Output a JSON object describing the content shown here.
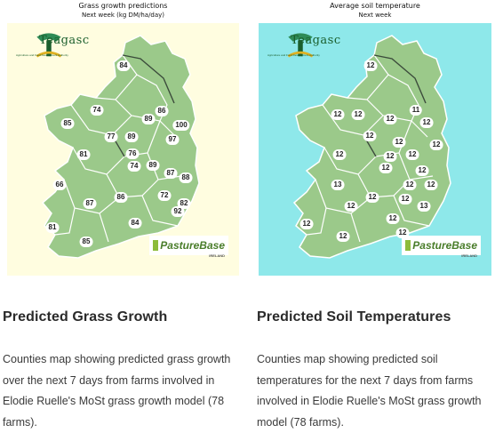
{
  "left_panel": {
    "map_title": "Grass growth predictions",
    "map_subtitle": "Next week (kg DM/ha/day)",
    "logo_text": "Teagasc",
    "logo_tagline": "Agriculture and Food Development Authority",
    "partner_logo": "PastureBase",
    "partner_logo_sub": "IRELAND",
    "values": [
      "84",
      "74",
      "86",
      "89",
      "85",
      "100",
      "77",
      "89",
      "76",
      "97",
      "81",
      "74",
      "89",
      "87",
      "66",
      "86",
      "72",
      "88",
      "82",
      "87",
      "92",
      "81",
      "84",
      "85"
    ],
    "heading": "Predicted Grass Growth",
    "description": "Counties map showing predicted grass growth over the next 7 days from farms involved in Elodie Ruelle's MoSt grass growth model (78 farms).",
    "background_color": "#fffde0",
    "land_color": "#9bc98a"
  },
  "right_panel": {
    "map_title": "Average soil temperature",
    "map_subtitle": "Next week",
    "logo_text": "Teagasc",
    "logo_tagline": "Agriculture and Food Development Authority",
    "partner_logo": "PastureBase",
    "partner_logo_sub": "IRELAND",
    "values": [
      "12",
      "12",
      "11",
      "12",
      "12",
      "12",
      "12",
      "12",
      "12",
      "12",
      "12",
      "12",
      "12",
      "12",
      "13",
      "12",
      "12",
      "12",
      "12",
      "12",
      "13",
      "12",
      "12",
      "12",
      "12"
    ],
    "heading": "Predicted Soil Temperatures",
    "description": "Counties map showing predicted soil temperatures for the next 7 days from farms involved in Elodie Ruelle's MoSt grass growth model (78 farms).",
    "background_color": "#8ee8ea",
    "land_color": "#9bc98a"
  }
}
